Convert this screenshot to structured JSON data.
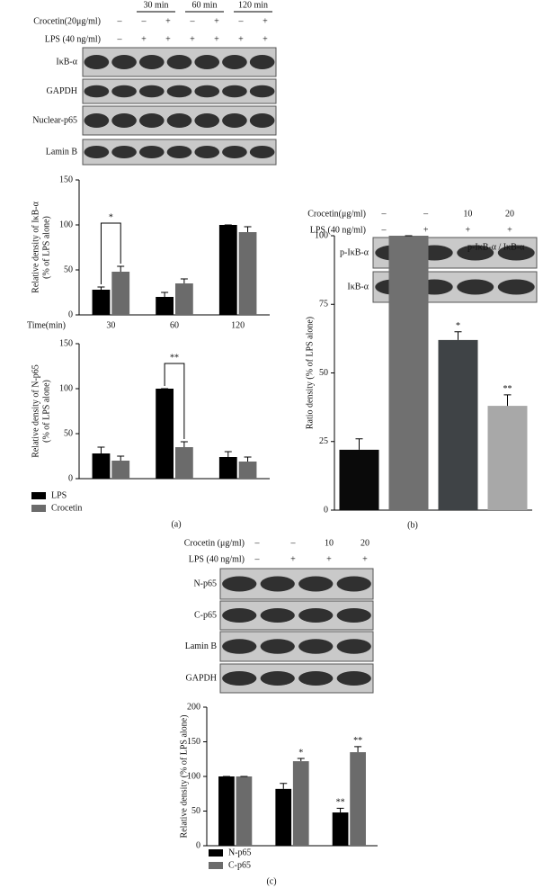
{
  "panel_labels": [
    "(a)",
    "(b)",
    "(c)"
  ],
  "blots": [
    {
      "header_groups": [
        "30 min",
        "60 min",
        "120 min"
      ],
      "treatments": [
        {
          "label": "Crocetin(20μg/ml)",
          "lanes": [
            "–",
            "–",
            "+",
            "–",
            "+",
            "–",
            "+"
          ]
        },
        {
          "label": "LPS (40 ng/ml)",
          "lanes": [
            "–",
            "+",
            "+",
            "+",
            "+",
            "+",
            "+"
          ]
        }
      ],
      "rows": [
        "IκB-α",
        "GAPDH",
        "Nuclear-p65",
        "Lamin B"
      ]
    },
    {
      "treatments": [
        {
          "label": "Crocetin(μg/ml)",
          "lanes": [
            "–",
            "–",
            "10",
            "20"
          ]
        },
        {
          "label": "LPS (40 ng/ml)",
          "lanes": [
            "–",
            "+",
            "+",
            "+"
          ]
        }
      ],
      "rows": [
        "p-IκB-α",
        "IκB-α"
      ]
    },
    {
      "treatments": [
        {
          "label": "Crocetin (μg/ml)",
          "lanes": [
            "–",
            "–",
            "10",
            "20"
          ]
        },
        {
          "label": "LPS (40 ng/ml)",
          "lanes": [
            "–",
            "+",
            "+",
            "+"
          ]
        }
      ],
      "rows": [
        "N-p65",
        "C-p65",
        "Lamin B",
        "GAPDH"
      ]
    }
  ],
  "chart_data": [
    {
      "type": "bar",
      "ylabel": [
        "Relative density of IκB-α",
        "(% of LPS alone)"
      ],
      "xlabel": "Time(min)",
      "categories": [
        "30",
        "60",
        "120"
      ],
      "ylim": [
        0,
        150
      ],
      "yticks": [
        0,
        50,
        100,
        150
      ],
      "series": [
        {
          "name": "LPS",
          "color": "#000000",
          "values": [
            28,
            20,
            100
          ],
          "errors": [
            3,
            5,
            0
          ]
        },
        {
          "name": "Crocetin",
          "color": "#6b6b6b",
          "values": [
            48,
            35,
            92
          ],
          "errors": [
            6,
            5,
            6
          ]
        }
      ],
      "annotations": [
        "*"
      ]
    },
    {
      "type": "bar",
      "ylabel": [
        "Relative density of N-p65",
        "(% of LPS alone)"
      ],
      "ylim": [
        0,
        150
      ],
      "yticks": [
        0,
        50,
        100,
        150
      ],
      "series": [
        {
          "name": "LPS",
          "color": "#000000",
          "values": [
            28,
            100,
            24
          ],
          "errors": [
            7,
            0,
            6
          ]
        },
        {
          "name": "Crocetin",
          "color": "#6b6b6b",
          "values": [
            20,
            35,
            19
          ],
          "errors": [
            5,
            6,
            5
          ]
        }
      ],
      "annotations": [
        "**"
      ],
      "legend": true
    },
    {
      "type": "bar",
      "ylabel": [
        "Ratio density (% of LPS alone)"
      ],
      "annotation": "p-IκB-α / IκB-α",
      "ylim": [
        0,
        100
      ],
      "yticks": [
        0,
        25,
        50,
        75,
        100
      ],
      "values": [
        22,
        100,
        62,
        38
      ],
      "errors": [
        4,
        0,
        3,
        4
      ],
      "colors": [
        "#0a0a0a",
        "#707070",
        "#3f4346",
        "#a8a8a8"
      ],
      "significance": [
        null,
        null,
        "*",
        "**"
      ]
    },
    {
      "type": "bar",
      "ylabel": [
        "Relative density (% of LPS alone)"
      ],
      "ylim": [
        0,
        200
      ],
      "yticks": [
        0,
        50,
        100,
        150,
        200
      ],
      "series": [
        {
          "name": "N-p65",
          "color": "#000000",
          "values": [
            100,
            82,
            48
          ],
          "errors": [
            0,
            8,
            6
          ],
          "significance": [
            null,
            null,
            "**"
          ]
        },
        {
          "name": "C-p65",
          "color": "#6b6b6b",
          "values": [
            100,
            122,
            135
          ],
          "errors": [
            0,
            4,
            8
          ],
          "significance": [
            null,
            "*",
            "**"
          ]
        }
      ],
      "legend": true
    }
  ]
}
